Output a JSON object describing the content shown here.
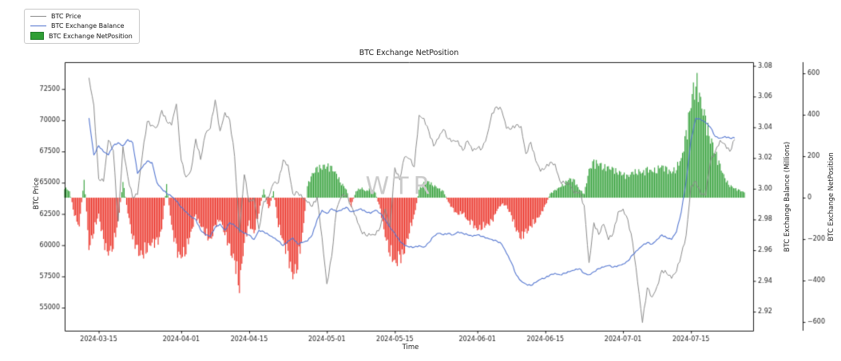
{
  "title": "BTC Exchange NetPosition",
  "watermark": "WTR",
  "legend": {
    "items": [
      {
        "label": "BTC Price",
        "swatch": "line",
        "color": "#8a8a8a"
      },
      {
        "label": "BTC Exchange Balance",
        "swatch": "line",
        "color": "#5577d0"
      },
      {
        "label": "BTC Exchange NetPosition",
        "swatch": "patch",
        "color": "#2f9e35"
      }
    ]
  },
  "axes": {
    "x": {
      "label": "Time",
      "tick_labels": [
        "2024-03-15",
        "2024-04-01",
        "2024-04-15",
        "2024-05-01",
        "2024-05-15",
        "2024-06-01",
        "2024-06-15",
        "2024-07-01",
        "2024-07-15"
      ]
    },
    "y_left": {
      "label": "BTC Price",
      "tick_labels": [
        "55000",
        "57500",
        "60000",
        "62500",
        "65000",
        "67500",
        "70000",
        "72500"
      ]
    },
    "y_right_balance": {
      "label": "BTC Exchange Balance (Millions)",
      "tick_labels": [
        "2.92",
        "2.94",
        "2.96",
        "2.98",
        "3.00",
        "3.02",
        "3.04",
        "3.06",
        "3.08"
      ]
    },
    "y_right_netposition": {
      "label": "BTC Exchange NetPosition",
      "tick_labels": [
        "-600",
        "-400",
        "-200",
        "0",
        "200",
        "400",
        "600"
      ]
    }
  },
  "chart_data": {
    "type": "line+bar",
    "title": "BTC Exchange NetPosition",
    "xlabel": "Time",
    "x_start": "2024-03-08",
    "x_interval_days": 1,
    "x_axis_span_days": 141.8,
    "grid": false,
    "legend_position": "upper-left-outside",
    "colors": {
      "price": "#8a8a8a",
      "balance": "#5577d0",
      "net_positive": "#2f9e35",
      "net_negative": "#ea2a1f",
      "watermark": "#cbcbcb"
    },
    "axis_ranges": {
      "price": [
        53153,
        74650
      ],
      "balance": [
        2.9076,
        3.0824
      ],
      "netposition": [
        -642,
        654
      ]
    },
    "series": [
      {
        "name": "BTC Price",
        "type": "line",
        "axis": "price",
        "color": "#8a8a8a",
        "values": [
          null,
          null,
          null,
          null,
          null,
          73400,
          71200,
          65300,
          65100,
          68400,
          67600,
          61900,
          67900,
          65500,
          63800,
          64050,
          67200,
          69900,
          69600,
          69450,
          70800,
          69900,
          69600,
          71300,
          66800,
          65450,
          65980,
          68500,
          66850,
          68900,
          69360,
          71630,
          69140,
          70630,
          70010,
          67100,
          61000,
          65650,
          63450,
          63800,
          61280,
          63510,
          63800,
          64940,
          64980,
          66820,
          66430,
          64100,
          64230,
          63750,
          63420,
          63100,
          63860,
          60640,
          56900,
          59120,
          62880,
          63890,
          64010,
          63160,
          62300,
          61190,
          60790,
          60790,
          60800,
          61450,
          62900,
          61550,
          66200,
          65230,
          67050,
          66910,
          66270,
          70400,
          70150,
          69120,
          67930,
          68540,
          69270,
          68500,
          68400,
          68360,
          67580,
          68350,
          67530,
          67760,
          67750,
          68800,
          70560,
          71080,
          70790,
          69340,
          69300,
          69640,
          69510,
          67310,
          68250,
          66770,
          65900,
          66190,
          66640,
          66500,
          65140,
          64960,
          64830,
          64130,
          64260,
          63180,
          58600,
          61800,
          60850,
          61680,
          60430,
          60970,
          62670,
          62900,
          62030,
          60170,
          57050,
          53800,
          56600,
          55850,
          56700,
          58000,
          57740,
          57340,
          57900,
          59230,
          60800,
          64740,
          65100,
          64100,
          63980,
          66700,
          67500,
          68400,
          68100,
          67500,
          68450,
          null,
          null
        ]
      },
      {
        "name": "BTC Exchange Balance",
        "type": "line",
        "axis": "balance",
        "color": "#5577d0",
        "values": [
          null,
          null,
          null,
          null,
          null,
          3.046,
          3.022,
          3.028,
          3.024,
          3.022,
          3.028,
          3.03,
          3.028,
          3.032,
          3.03,
          3.01,
          3.014,
          3.018,
          3.017,
          3.004,
          3.0,
          2.997,
          2.995,
          2.992,
          2.988,
          2.985,
          2.982,
          2.98,
          2.973,
          2.97,
          2.969,
          2.975,
          2.977,
          2.973,
          2.978,
          2.976,
          2.973,
          2.971,
          2.97,
          2.967,
          2.973,
          2.972,
          2.97,
          2.968,
          2.966,
          2.963,
          2.966,
          2.968,
          2.964,
          2.965,
          2.966,
          2.97,
          2.98,
          2.986,
          2.984,
          2.987,
          2.985,
          2.986,
          2.988,
          2.985,
          2.986,
          2.987,
          2.985,
          2.984,
          2.986,
          2.984,
          2.98,
          2.975,
          2.971,
          2.966,
          2.963,
          2.962,
          2.962,
          2.963,
          2.962,
          2.965,
          2.969,
          2.971,
          2.97,
          2.971,
          2.97,
          2.972,
          2.971,
          2.97,
          2.969,
          2.97,
          2.969,
          2.968,
          2.967,
          2.966,
          2.964,
          2.958,
          2.952,
          2.944,
          2.94,
          2.938,
          2.937,
          2.939,
          2.941,
          2.942,
          2.944,
          2.945,
          2.944,
          2.945,
          2.946,
          2.947,
          2.948,
          2.945,
          2.944,
          2.946,
          2.948,
          2.949,
          2.95,
          2.949,
          2.95,
          2.951,
          2.953,
          2.957,
          2.96,
          2.963,
          2.965,
          2.964,
          2.967,
          2.97,
          2.968,
          2.967,
          2.972,
          2.985,
          3.005,
          3.032,
          3.046,
          3.045,
          3.043,
          3.04,
          3.034,
          3.033,
          3.034,
          3.033,
          3.033,
          null,
          null
        ]
      },
      {
        "name": "BTC Exchange NetPosition",
        "type": "bar",
        "axis": "netposition",
        "color_positive": "#2f9e35",
        "color_negative": "#ea2a1f",
        "values": [
          50,
          30,
          -80,
          -140,
          100,
          -240,
          -160,
          -80,
          -220,
          -260,
          -230,
          -120,
          80,
          -70,
          -190,
          -260,
          -280,
          -240,
          -210,
          -230,
          -150,
          60,
          -130,
          -260,
          -280,
          -250,
          -170,
          -90,
          -130,
          -170,
          -210,
          -140,
          -100,
          -170,
          -250,
          -310,
          -420,
          -210,
          -130,
          -170,
          -70,
          40,
          -60,
          30,
          -130,
          -210,
          -290,
          -370,
          -320,
          -180,
          60,
          110,
          140,
          150,
          155,
          140,
          110,
          70,
          40,
          -40,
          30,
          50,
          30,
          45,
          25,
          -60,
          -180,
          -260,
          -315,
          -300,
          -250,
          -160,
          -90,
          40,
          70,
          75,
          60,
          45,
          30,
          -20,
          -60,
          -80,
          -70,
          -110,
          -130,
          -150,
          -140,
          -130,
          -120,
          -60,
          -30,
          -40,
          -90,
          -150,
          -190,
          -170,
          -140,
          -110,
          -80,
          -40,
          20,
          35,
          50,
          70,
          90,
          80,
          40,
          20,
          130,
          170,
          165,
          150,
          140,
          135,
          125,
          115,
          100,
          120,
          130,
          120,
          135,
          125,
          140,
          150,
          135,
          120,
          150,
          180,
          300,
          460,
          580,
          450,
          370,
          290,
          220,
          150,
          90,
          60,
          45,
          35,
          25
        ]
      }
    ]
  }
}
